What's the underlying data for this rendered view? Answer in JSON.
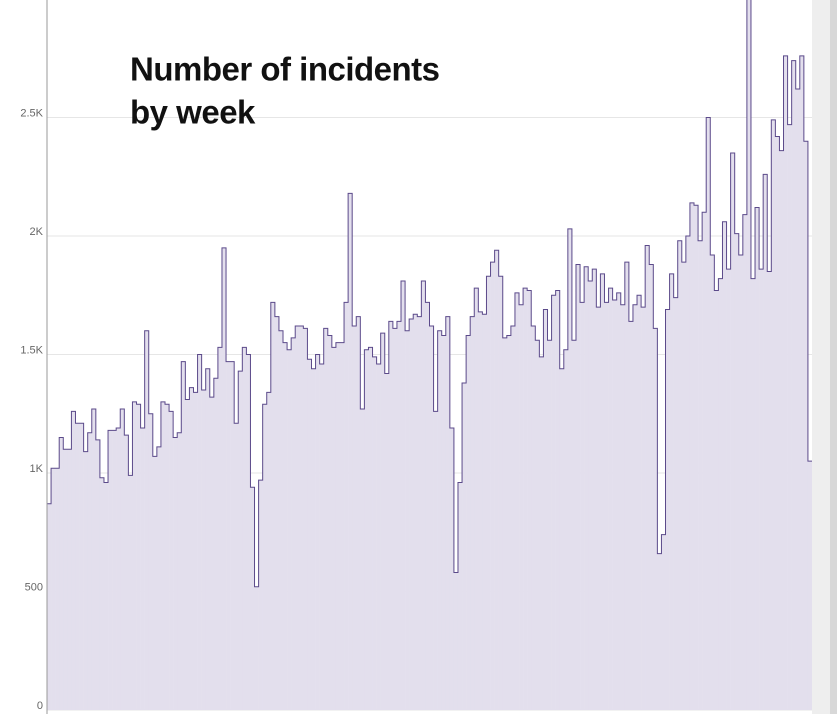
{
  "chart_data": {
    "type": "area",
    "step": true,
    "title_lines": [
      "Number of incidents",
      "by week"
    ],
    "color": "#5b4a8a",
    "fill": "#e3dfed",
    "values": [
      870,
      1020,
      1020,
      1150,
      1100,
      1100,
      1260,
      1210,
      1210,
      1090,
      1170,
      1270,
      1140,
      980,
      960,
      1180,
      1180,
      1190,
      1270,
      1160,
      990,
      1300,
      1290,
      1190,
      1600,
      1250,
      1070,
      1110,
      1300,
      1290,
      1260,
      1150,
      1170,
      1470,
      1310,
      1360,
      1340,
      1500,
      1350,
      1440,
      1320,
      1400,
      1530,
      1950,
      1470,
      1470,
      1210,
      1430,
      1530,
      1500,
      940,
      520,
      970,
      1290,
      1340,
      1720,
      1660,
      1600,
      1550,
      1520,
      1570,
      1620,
      1620,
      1610,
      1480,
      1440,
      1500,
      1460,
      1610,
      1580,
      1530,
      1550,
      1550,
      1720,
      2180,
      1620,
      1660,
      1270,
      1520,
      1530,
      1490,
      1460,
      1590,
      1420,
      1640,
      1610,
      1640,
      1810,
      1600,
      1650,
      1670,
      1660,
      1810,
      1720,
      1620,
      1260,
      1600,
      1580,
      1660,
      1190,
      580,
      960,
      1380,
      1580,
      1660,
      1780,
      1680,
      1670,
      1830,
      1890,
      1940,
      1830,
      1570,
      1580,
      1620,
      1760,
      1710,
      1780,
      1770,
      1620,
      1560,
      1490,
      1690,
      1560,
      1750,
      1770,
      1440,
      1520,
      2030,
      1560,
      1880,
      1720,
      1870,
      1810,
      1860,
      1700,
      1840,
      1720,
      1780,
      1730,
      1760,
      1710,
      1890,
      1640,
      1710,
      1750,
      1700,
      1960,
      1880,
      1610,
      660,
      740,
      1690,
      1840,
      1740,
      1980,
      1890,
      2000,
      2140,
      2130,
      1980,
      2100,
      2500,
      1920,
      1770,
      1820,
      2060,
      1860,
      2350,
      2010,
      1920,
      2090,
      3000,
      1820,
      2120,
      1860,
      2260,
      1850,
      2490,
      2420,
      2360,
      2760,
      2470,
      2740,
      2620,
      2760,
      2400,
      1050
    ],
    "ylim": [
      0,
      3000
    ],
    "yticks": [
      0,
      500,
      {
        "value": 1000,
        "label": "1K"
      },
      {
        "value": 1500,
        "label": "1.5K"
      },
      {
        "value": 2000,
        "label": "2K"
      },
      {
        "value": 2500,
        "label": "2.5K"
      }
    ],
    "grid": true
  }
}
